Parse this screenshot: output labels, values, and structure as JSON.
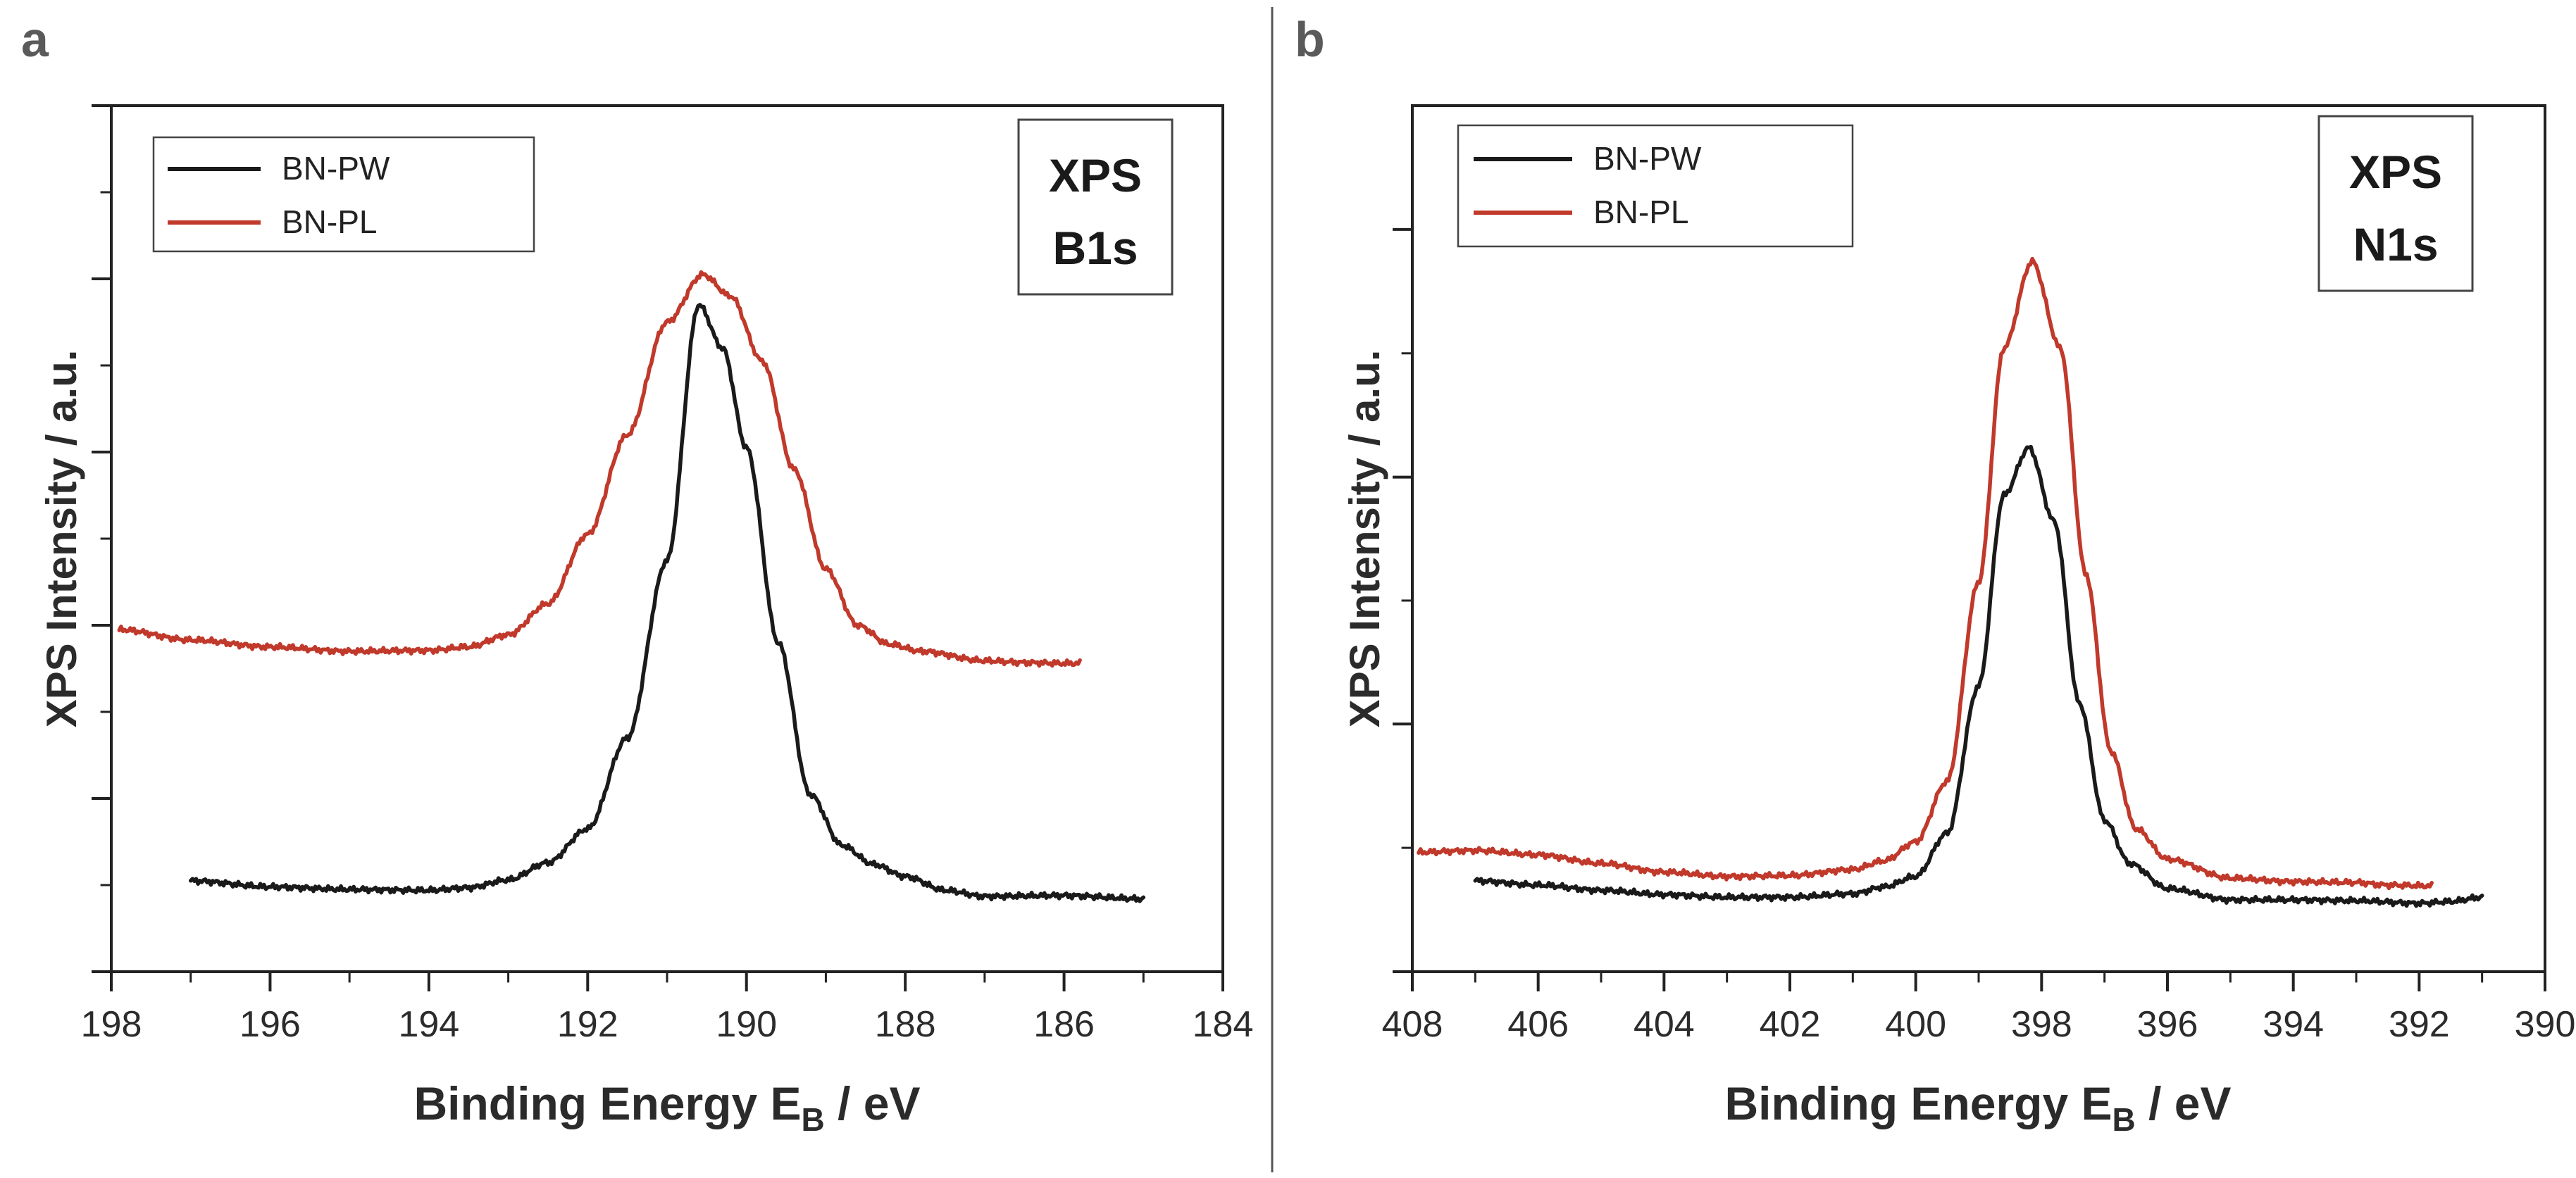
{
  "chart_data": [
    {
      "type": "line",
      "panel_label": "a",
      "title": "",
      "xlabel_main": "Binding Energy  E",
      "xlabel_sub": "B",
      "xlabel_unit": " / eV",
      "ylabel": "XPS Intensity / a.u.",
      "xlim": [
        198,
        184
      ],
      "ylim": [
        0,
        100
      ],
      "x_ticks": [
        198,
        196,
        194,
        192,
        190,
        188,
        186,
        184
      ],
      "x_tick_labels": [
        "198",
        "196",
        "194",
        "192",
        "190",
        "188",
        "186",
        "184"
      ],
      "y_ticks": [
        0,
        20,
        40,
        60,
        80,
        100
      ],
      "grid": false,
      "legend_position": "top-left",
      "box_lines": [
        "XPS",
        "B1s"
      ],
      "series": [
        {
          "name": "BN-PW",
          "color": "#1a1a1a",
          "peak_center": 190.6,
          "peak_sigma": 0.72,
          "points": [
            [
              197.0,
              10.5
            ],
            [
              196.0,
              9.8
            ],
            [
              195.0,
              9.5
            ],
            [
              194.0,
              9.4
            ],
            [
              193.5,
              9.7
            ],
            [
              193.0,
              10.6
            ],
            [
              192.5,
              12.6
            ],
            [
              192.0,
              16.5
            ],
            [
              191.5,
              27.0
            ],
            [
              191.0,
              47.5
            ],
            [
              190.6,
              77.0
            ],
            [
              190.3,
              72.0
            ],
            [
              190.0,
              60.5
            ],
            [
              189.6,
              38.0
            ],
            [
              189.2,
              20.5
            ],
            [
              188.8,
              14.6
            ],
            [
              188.4,
              12.4
            ],
            [
              188.0,
              11.0
            ],
            [
              187.5,
              9.4
            ],
            [
              187.0,
              8.7
            ],
            [
              186.0,
              8.8
            ],
            [
              185.0,
              8.4
            ]
          ]
        },
        {
          "name": "BN-PL",
          "color": "#c0392b",
          "peak_center": 190.55,
          "peak_sigma": 0.95,
          "points": [
            [
              197.9,
              39.5
            ],
            [
              197.0,
              38.3
            ],
            [
              196.0,
              37.5
            ],
            [
              195.0,
              37.0
            ],
            [
              194.0,
              37.1
            ],
            [
              193.5,
              37.5
            ],
            [
              193.0,
              38.9
            ],
            [
              192.5,
              42.5
            ],
            [
              192.0,
              50.5
            ],
            [
              191.5,
              62.0
            ],
            [
              191.0,
              75.0
            ],
            [
              190.55,
              80.5
            ],
            [
              190.2,
              78.0
            ],
            [
              189.8,
              70.5
            ],
            [
              189.4,
              58.0
            ],
            [
              189.0,
              46.5
            ],
            [
              188.6,
              40.0
            ],
            [
              188.2,
              37.8
            ],
            [
              187.8,
              37.0
            ],
            [
              187.0,
              35.9
            ],
            [
              186.5,
              35.7
            ],
            [
              186.0,
              35.6
            ],
            [
              185.8,
              35.6
            ]
          ]
        }
      ]
    },
    {
      "type": "line",
      "panel_label": "b",
      "title": "",
      "xlabel_main": "Binding Energy  E",
      "xlabel_sub": "B",
      "xlabel_unit": " / eV",
      "ylabel": "XPS Intensity / a.u.",
      "xlim": [
        408,
        390
      ],
      "ylim": [
        0,
        100
      ],
      "x_ticks": [
        408,
        406,
        404,
        402,
        400,
        398,
        396,
        394,
        392,
        390
      ],
      "x_tick_labels": [
        "408",
        "406",
        "404",
        "402",
        "400",
        "398",
        "396",
        "394",
        "392",
        "390"
      ],
      "y_ticks": [
        0,
        28.6,
        57.1,
        85.7
      ],
      "grid": false,
      "legend_position": "top-left",
      "box_lines": [
        "XPS",
        "N1s"
      ],
      "series": [
        {
          "name": "BN-PW",
          "color": "#1a1a1a",
          "peak_center": 398.2,
          "peak_sigma": 0.6,
          "points": [
            [
              407.0,
              10.5
            ],
            [
              406.0,
              10.0
            ],
            [
              405.0,
              9.4
            ],
            [
              404.0,
              8.9
            ],
            [
              403.0,
              8.6
            ],
            [
              402.0,
              8.6
            ],
            [
              401.0,
              9.0
            ],
            [
              400.5,
              9.8
            ],
            [
              400.0,
              11.0
            ],
            [
              399.5,
              16.0
            ],
            [
              399.0,
              33.0
            ],
            [
              398.6,
              55.0
            ],
            [
              398.2,
              60.5
            ],
            [
              397.8,
              52.0
            ],
            [
              397.4,
              31.0
            ],
            [
              397.0,
              17.5
            ],
            [
              396.6,
              12.5
            ],
            [
              396.0,
              9.6
            ],
            [
              395.0,
              8.3
            ],
            [
              394.0,
              8.3
            ],
            [
              393.0,
              8.2
            ],
            [
              392.0,
              7.9
            ],
            [
              391.5,
              8.1
            ],
            [
              391.0,
              8.6
            ]
          ]
        },
        {
          "name": "BN-PL",
          "color": "#c0392b",
          "peak_center": 398.15,
          "peak_sigma": 0.7,
          "points": [
            [
              407.9,
              13.8
            ],
            [
              407.0,
              14.0
            ],
            [
              406.0,
              13.5
            ],
            [
              405.0,
              12.5
            ],
            [
              404.0,
              11.5
            ],
            [
              403.0,
              11.0
            ],
            [
              402.0,
              11.1
            ],
            [
              401.0,
              11.8
            ],
            [
              400.5,
              12.8
            ],
            [
              400.0,
              15.0
            ],
            [
              399.5,
              22.0
            ],
            [
              399.0,
              45.0
            ],
            [
              398.6,
              72.0
            ],
            [
              398.15,
              82.0
            ],
            [
              397.7,
              72.0
            ],
            [
              397.3,
              46.0
            ],
            [
              396.9,
              25.5
            ],
            [
              396.5,
              16.5
            ],
            [
              396.0,
              13.0
            ],
            [
              395.0,
              10.8
            ],
            [
              394.0,
              10.4
            ],
            [
              393.0,
              10.3
            ],
            [
              392.5,
              10.0
            ],
            [
              391.8,
              9.9
            ]
          ]
        }
      ]
    }
  ]
}
